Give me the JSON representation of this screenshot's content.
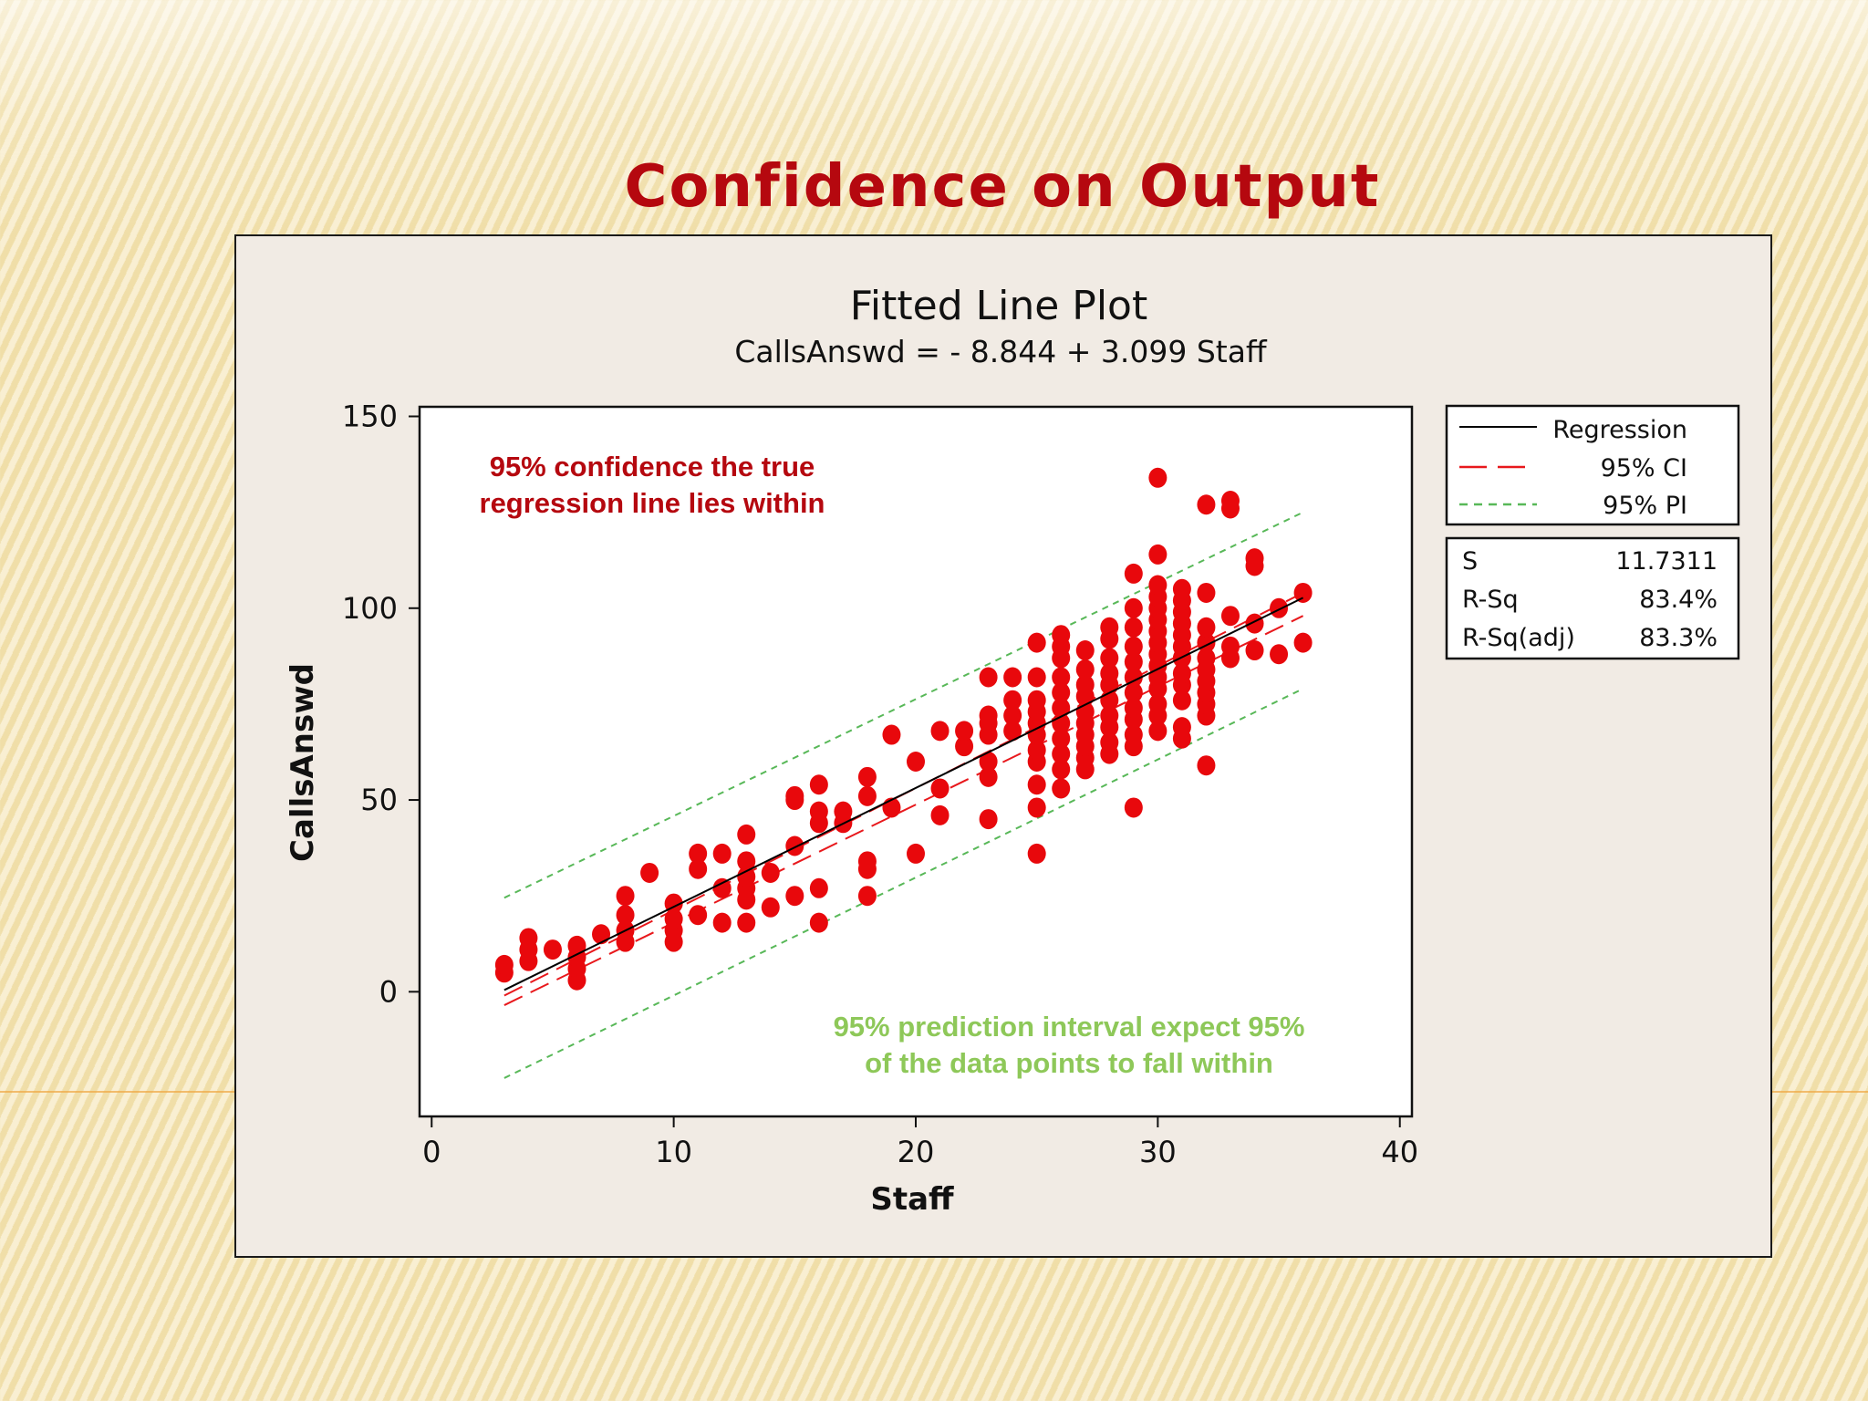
{
  "slide": {
    "title": "Confidence on Output"
  },
  "chart_data": {
    "type": "scatter",
    "title": "Fitted Line Plot",
    "subtitle": "CallsAnswd =  - 8.844 + 3.099 Staff",
    "xlabel": "Staff",
    "ylabel": "CallsAnswd",
    "xlim": [
      -0.5,
      40.5
    ],
    "ylim": [
      -32.5,
      152.5
    ],
    "xticks": [
      0,
      10,
      20,
      30,
      40
    ],
    "yticks": [
      0,
      50,
      100,
      150
    ],
    "regression": {
      "intercept": -8.844,
      "slope": 3.099,
      "x_range": [
        3,
        36
      ]
    },
    "ci_band": {
      "lower_at_min": -3.5,
      "upper_at_min": -1.0,
      "lower_at_max": 98,
      "upper_at_max": 104
    },
    "pi_band": {
      "lower_at_min": -22.5,
      "upper_at_min": 24.5,
      "lower_at_max": 79,
      "upper_at_max": 125
    },
    "legend": {
      "position": "right",
      "entries": [
        {
          "label": "Regression",
          "style": "solid",
          "color": "#000000"
        },
        {
          "label": "95% CI",
          "style": "long-dash",
          "color": "#e8181c"
        },
        {
          "label": "95% PI",
          "style": "dotted",
          "color": "#58b858"
        }
      ]
    },
    "stats": [
      {
        "label": "S",
        "value": "11.7311"
      },
      {
        "label": "R-Sq",
        "value": "83.4%"
      },
      {
        "label": "R-Sq(adj)",
        "value": "83.3%"
      }
    ],
    "annotations": [
      {
        "text": "95% confidence the true regression line lies within",
        "lines": [
          "95% confidence the true",
          "regression line lies within"
        ],
        "color": "#b5080f"
      },
      {
        "text": "95% prediction interval expect 95% of the data points to fall within",
        "lines": [
          "95% prediction interval expect 95%",
          "of the data points to fall within"
        ],
        "color": "#8ec859"
      }
    ],
    "point_color": "#e8080c",
    "points": [
      [
        3,
        5
      ],
      [
        3,
        7
      ],
      [
        4,
        8
      ],
      [
        4,
        11
      ],
      [
        4,
        14
      ],
      [
        5,
        11
      ],
      [
        6,
        3
      ],
      [
        6,
        6
      ],
      [
        6,
        9
      ],
      [
        6,
        12
      ],
      [
        7,
        15
      ],
      [
        8,
        13
      ],
      [
        8,
        16
      ],
      [
        8,
        20
      ],
      [
        8,
        25
      ],
      [
        9,
        31
      ],
      [
        10,
        13
      ],
      [
        10,
        16
      ],
      [
        10,
        19
      ],
      [
        10,
        23
      ],
      [
        11,
        20
      ],
      [
        11,
        32
      ],
      [
        11,
        36
      ],
      [
        12,
        18
      ],
      [
        12,
        27
      ],
      [
        12,
        36
      ],
      [
        13,
        18
      ],
      [
        13,
        24
      ],
      [
        13,
        27
      ],
      [
        13,
        30
      ],
      [
        13,
        34
      ],
      [
        13,
        41
      ],
      [
        14,
        22
      ],
      [
        14,
        31
      ],
      [
        15,
        25
      ],
      [
        15,
        38
      ],
      [
        15,
        50
      ],
      [
        15,
        51
      ],
      [
        16,
        18
      ],
      [
        16,
        27
      ],
      [
        16,
        44
      ],
      [
        16,
        47
      ],
      [
        16,
        54
      ],
      [
        17,
        44
      ],
      [
        17,
        47
      ],
      [
        18,
        25
      ],
      [
        18,
        32
      ],
      [
        18,
        34
      ],
      [
        18,
        51
      ],
      [
        18,
        56
      ],
      [
        19,
        48
      ],
      [
        19,
        67
      ],
      [
        20,
        36
      ],
      [
        20,
        60
      ],
      [
        21,
        46
      ],
      [
        21,
        53
      ],
      [
        21,
        68
      ],
      [
        22,
        64
      ],
      [
        22,
        68
      ],
      [
        23,
        45
      ],
      [
        23,
        56
      ],
      [
        23,
        60
      ],
      [
        23,
        67
      ],
      [
        23,
        70
      ],
      [
        23,
        72
      ],
      [
        23,
        82
      ],
      [
        24,
        68
      ],
      [
        24,
        72
      ],
      [
        24,
        76
      ],
      [
        24,
        82
      ],
      [
        25,
        36
      ],
      [
        25,
        48
      ],
      [
        25,
        54
      ],
      [
        25,
        60
      ],
      [
        25,
        63
      ],
      [
        25,
        67
      ],
      [
        25,
        70
      ],
      [
        25,
        73
      ],
      [
        25,
        76
      ],
      [
        25,
        82
      ],
      [
        25,
        91
      ],
      [
        26,
        53
      ],
      [
        26,
        58
      ],
      [
        26,
        62
      ],
      [
        26,
        66
      ],
      [
        26,
        70
      ],
      [
        26,
        74
      ],
      [
        26,
        78
      ],
      [
        26,
        82
      ],
      [
        26,
        87
      ],
      [
        26,
        90
      ],
      [
        26,
        93
      ],
      [
        27,
        58
      ],
      [
        27,
        61
      ],
      [
        27,
        64
      ],
      [
        27,
        67
      ],
      [
        27,
        70
      ],
      [
        27,
        73
      ],
      [
        27,
        77
      ],
      [
        27,
        80
      ],
      [
        27,
        84
      ],
      [
        27,
        89
      ],
      [
        28,
        62
      ],
      [
        28,
        65
      ],
      [
        28,
        69
      ],
      [
        28,
        72
      ],
      [
        28,
        76
      ],
      [
        28,
        80
      ],
      [
        28,
        83
      ],
      [
        28,
        87
      ],
      [
        28,
        92
      ],
      [
        28,
        95
      ],
      [
        29,
        48
      ],
      [
        29,
        64
      ],
      [
        29,
        67
      ],
      [
        29,
        71
      ],
      [
        29,
        74
      ],
      [
        29,
        78
      ],
      [
        29,
        82
      ],
      [
        29,
        86
      ],
      [
        29,
        90
      ],
      [
        29,
        95
      ],
      [
        29,
        100
      ],
      [
        29,
        109
      ],
      [
        30,
        68
      ],
      [
        30,
        72
      ],
      [
        30,
        75
      ],
      [
        30,
        79
      ],
      [
        30,
        82
      ],
      [
        30,
        85
      ],
      [
        30,
        88
      ],
      [
        30,
        91
      ],
      [
        30,
        94
      ],
      [
        30,
        97
      ],
      [
        30,
        100
      ],
      [
        30,
        103
      ],
      [
        30,
        106
      ],
      [
        30,
        114
      ],
      [
        30,
        134
      ],
      [
        31,
        66
      ],
      [
        31,
        69
      ],
      [
        31,
        76
      ],
      [
        31,
        80
      ],
      [
        31,
        83
      ],
      [
        31,
        87
      ],
      [
        31,
        90
      ],
      [
        31,
        93
      ],
      [
        31,
        96
      ],
      [
        31,
        99
      ],
      [
        31,
        102
      ],
      [
        31,
        105
      ],
      [
        32,
        59
      ],
      [
        32,
        72
      ],
      [
        32,
        75
      ],
      [
        32,
        78
      ],
      [
        32,
        81
      ],
      [
        32,
        84
      ],
      [
        32,
        87
      ],
      [
        32,
        91
      ],
      [
        32,
        95
      ],
      [
        32,
        104
      ],
      [
        32,
        127
      ],
      [
        33,
        87
      ],
      [
        33,
        90
      ],
      [
        33,
        98
      ],
      [
        33,
        126
      ],
      [
        33,
        128
      ],
      [
        34,
        89
      ],
      [
        34,
        96
      ],
      [
        34,
        111
      ],
      [
        34,
        113
      ],
      [
        35,
        88
      ],
      [
        35,
        100
      ],
      [
        36,
        91
      ],
      [
        36,
        104
      ]
    ]
  }
}
